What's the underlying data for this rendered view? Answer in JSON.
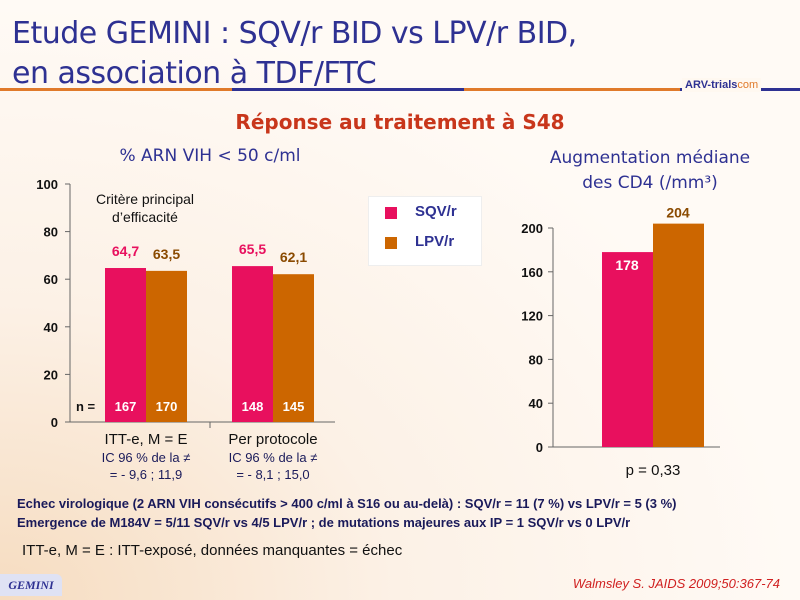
{
  "title_line1": "Etude GEMINI : SQV/r BID vs LPV/r BID,",
  "title_line2": "en association à TDF/FTC",
  "logo": {
    "text1": "ARV-trials",
    "text2": "com"
  },
  "subtitle": "Réponse au traitement à S48",
  "legend": [
    {
      "label": "SQV/r",
      "color": "#e8105e"
    },
    {
      "label": "LPV/r",
      "color": "#cc6600"
    }
  ],
  "chart_data": [
    {
      "type": "bar",
      "title": "% ARN VIH < 50 c/ml",
      "annotation": "Critère principal d’efficacité",
      "categories": [
        "ITT-e, M = E",
        "Per protocole"
      ],
      "series": [
        {
          "name": "SQV/r",
          "values": [
            64.7,
            65.5
          ],
          "labels": [
            "64,7",
            "65,5"
          ],
          "n": [
            "167",
            "148"
          ]
        },
        {
          "name": "LPV/r",
          "values": [
            63.5,
            62.1
          ],
          "labels": [
            "63,5",
            "62,1"
          ],
          "n": [
            "170",
            "145"
          ]
        }
      ],
      "n_label": "n =",
      "ci": [
        [
          "IC 96 % de la ≠",
          "= - 9,6 ; 11,9"
        ],
        [
          "IC 96 % de la ≠",
          "= - 8,1 ; 15,0"
        ]
      ],
      "ylim": [
        0,
        100
      ],
      "yticks": [
        "0",
        "20",
        "40",
        "60",
        "80",
        "100"
      ]
    },
    {
      "type": "bar",
      "title_line1": "Augmentation médiane",
      "title_line2": "des CD4 (/mm³)",
      "series": [
        {
          "name": "SQV/r",
          "values": [
            178
          ],
          "labels": [
            "178"
          ]
        },
        {
          "name": "LPV/r",
          "values": [
            204
          ],
          "labels": [
            "204"
          ]
        }
      ],
      "ylim": [
        0,
        200
      ],
      "yticks": [
        "0",
        "40",
        "80",
        "120",
        "160",
        "200"
      ],
      "pvalue": "p = 0,33"
    }
  ],
  "footnotes": [
    "Echec virologique (2 ARN VIH consécutifs > 400 c/ml à S16 ou au-delà) : SQV/r = 11 (7 %) vs LPV/r = 5 (3 %)",
    "Emergence de M184V = 5/11 SQV/r vs 4/5 LPV/r ; de mutations majeures aux IP = 1 SQV/r vs 0 LPV/r"
  ],
  "definition": "ITT-e, M = E : ITT-exposé, données manquantes = échec",
  "badge": "GEMINI",
  "reference": "Walmsley S. JAIDS 2009;50:367-74"
}
